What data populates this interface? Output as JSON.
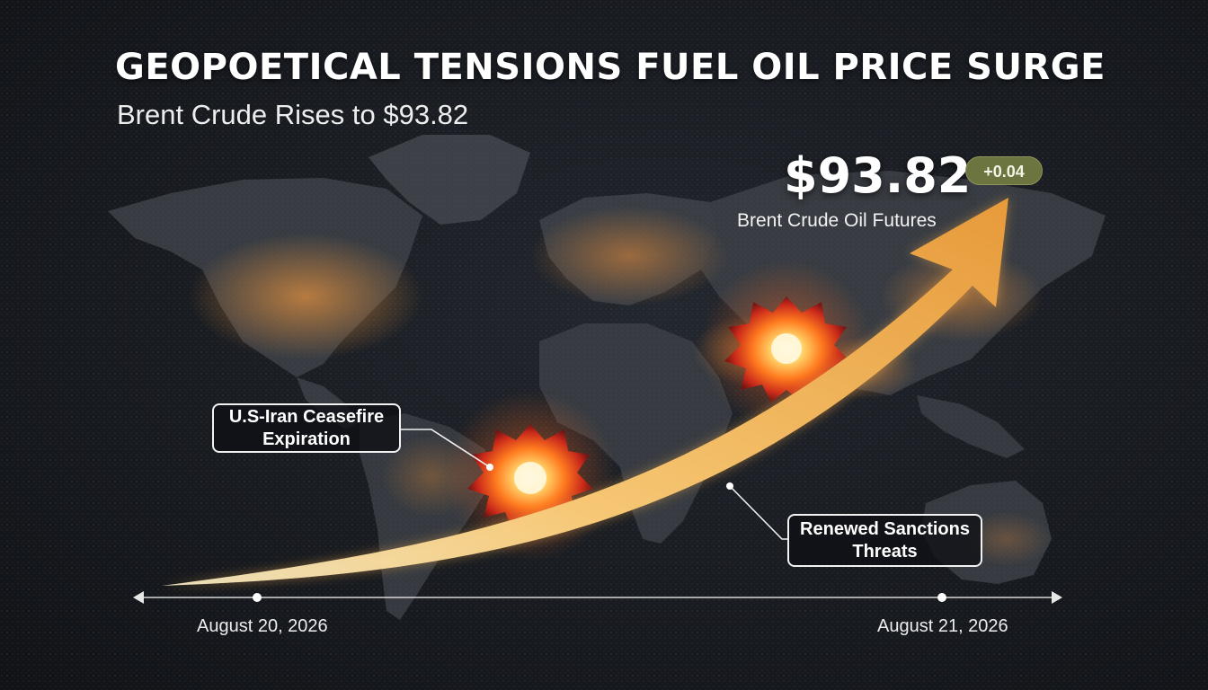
{
  "header": {
    "title": "GEOPOETICAL TENSIONS FUEL OIL PRICE SURGE",
    "subtitle": "Brent Crude Rises to $93.82"
  },
  "quote": {
    "price": "$93.82",
    "change": "+0.04",
    "instrument": "Brent Crude Oil Futures"
  },
  "callouts": {
    "ceasefire": {
      "line1": "U.S-Iran Ceasefire",
      "line2": "Expiration"
    },
    "sanctions": {
      "line1": "Renewed Sanctions",
      "line2": "Threats"
    }
  },
  "timeline": {
    "start_date": "August 20, 2026",
    "end_date": "August 21, 2026"
  },
  "colors": {
    "background": "#181b20",
    "landmass": "#3a3e44",
    "city_lights": "#e08a3a",
    "arrow": "#f0b050",
    "badge": "#6c7440",
    "explosion": "#ff5a1a"
  }
}
